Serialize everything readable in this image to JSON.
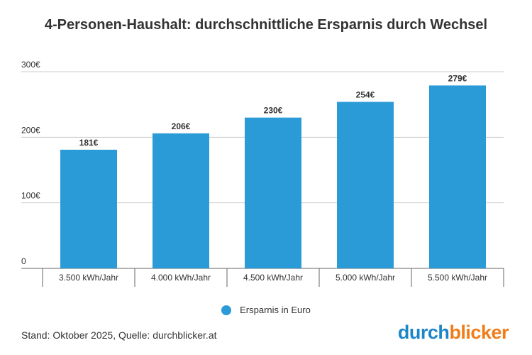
{
  "colors": {
    "bar": "#2b9bd8",
    "grid": "#cccccc",
    "axis": "#666666",
    "text": "#333333",
    "brand_blue": "#1d86c8",
    "brand_orange": "#f07d1a"
  },
  "chart_data": {
    "type": "bar",
    "title": "4-Personen-Haushalt: durchschnittliche Ersparnis durch Wechsel",
    "categories": [
      "3.500 kWh/Jahr",
      "4.000 kWh/Jahr",
      "4.500 kWh/Jahr",
      "5.000 kWh/Jahr",
      "5.500 kWh/Jahr"
    ],
    "series": [
      {
        "name": "Ersparnis in Euro",
        "values": [
          181,
          206,
          230,
          254,
          279
        ]
      }
    ],
    "data_labels": [
      "181€",
      "206€",
      "230€",
      "254€",
      "279€"
    ],
    "yticks": [
      0,
      100,
      200,
      300
    ],
    "ytick_labels": [
      "0",
      "100€",
      "200€",
      "300€"
    ],
    "ylim": [
      0,
      300
    ],
    "xlabel": "",
    "ylabel": "",
    "grid": true,
    "legend_position": "bottom-center"
  },
  "footer": {
    "source": "Stand: Oktober 2025, Quelle: durchblicker.at"
  },
  "brand": {
    "part1": "durch",
    "part2": "blicker"
  }
}
